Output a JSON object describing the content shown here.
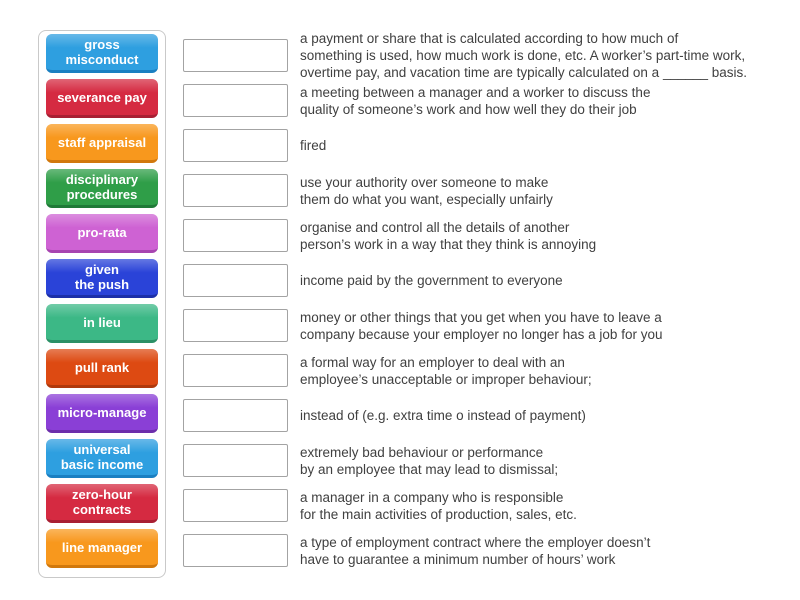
{
  "activity": {
    "rows": [
      {
        "term": "gross\nmisconduct",
        "color": "#2e9fe0",
        "color_dark": "#1a7fc1",
        "definition": "a payment or share that is calculated according to how much of\nsomething is used, how much work is done, etc. A worker’s part-time work,\novertime pay, and vacation time are typically calculated on a ______ basis."
      },
      {
        "term": "severance pay",
        "color": "#d52a41",
        "color_dark": "#a81f33",
        "definition": "a meeting between a manager and a worker to discuss the\nquality of someone’s work and how well they do their job"
      },
      {
        "term": "staff appraisal",
        "color": "#f8981d",
        "color_dark": "#d1780c",
        "definition": "fired"
      },
      {
        "term": "disciplinary\nprocedures",
        "color": "#2f9e48",
        "color_dark": "#1f7a37",
        "definition": "use your authority over someone to make\nthem do what you want, especially unfairly"
      },
      {
        "term": "pro-rata",
        "color": "#ce62d3",
        "color_dark": "#a744b0",
        "definition": "organise and control all the details of another\nperson’s work in a way that they think is annoying"
      },
      {
        "term": "given\nthe push",
        "color": "#2a43d8",
        "color_dark": "#1c2fa8",
        "definition": "income paid by the government to everyone"
      },
      {
        "term": "in lieu",
        "color": "#3cb886",
        "color_dark": "#2b9066",
        "definition": "money or other things that you get when you have to leave a\ncompany because your employer no longer has a job for you"
      },
      {
        "term": "pull rank",
        "color": "#dd4a12",
        "color_dark": "#b0390c",
        "definition": "a formal way for an employer to deal with an\nemployee’s unacceptable or improper behaviour;"
      },
      {
        "term": "micro-manage",
        "color": "#8a3fd6",
        "color_dark": "#6c2eab",
        "definition": "instead of (e.g. extra time o instead of payment)"
      },
      {
        "term": "universal\nbasic income",
        "color": "#2e9fe0",
        "color_dark": "#1a7fc1",
        "definition": "extremely bad behaviour or performance\nby an employee that may lead to dismissal;"
      },
      {
        "term": "zero-hour\ncontracts",
        "color": "#d52a41",
        "color_dark": "#a81f33",
        "definition": "a manager in a company who is responsible\nfor the main activities of production, sales, etc."
      },
      {
        "term": "line manager",
        "color": "#f8981d",
        "color_dark": "#d1780c",
        "definition": "a type of employment contract where the employer doesn’t\nhave to guarantee a minimum number of hours’ work"
      }
    ]
  }
}
